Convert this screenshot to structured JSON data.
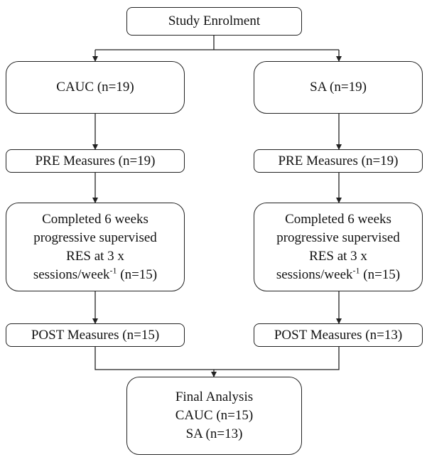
{
  "nodes": [
    {
      "lines": [
        "Study Enrolment"
      ]
    },
    {
      "lines": [
        "CAUC (n=19)"
      ]
    },
    {
      "lines": [
        "SA (n=19)"
      ]
    },
    {
      "lines": [
        "PRE Measures (n=19)"
      ]
    },
    {
      "lines": [
        "PRE Measures (n=19)"
      ]
    },
    {
      "lines": [
        "Completed 6 weeks",
        "progressive supervised",
        "RES at 3 x",
        {
          "text": "sessions/week",
          "sup": "-1",
          "after": " (n=15)"
        }
      ]
    },
    {
      "lines": [
        "Completed 6 weeks",
        "progressive supervised",
        "RES at 3 x",
        {
          "text": "sessions/week",
          "sup": "-1",
          "after": " (n=15)"
        }
      ]
    },
    {
      "lines": [
        "POST Measures (n=15)"
      ]
    },
    {
      "lines": [
        "POST Measures (n=13)"
      ]
    },
    {
      "lines": [
        "Final Analysis",
        "CAUC (n=15)",
        "SA (n=13)"
      ]
    }
  ]
}
